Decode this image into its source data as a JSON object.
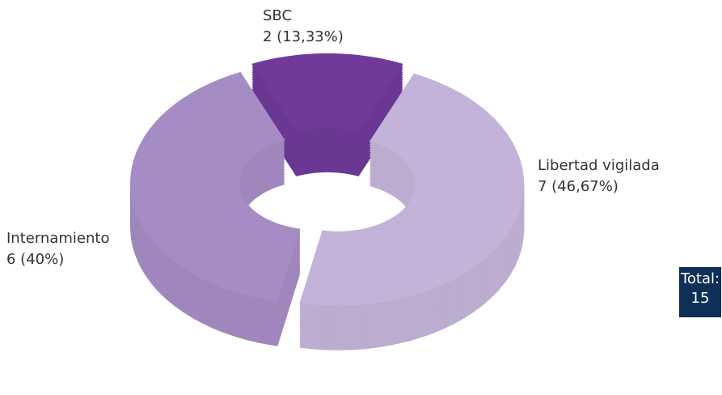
{
  "chart_data": {
    "type": "donut",
    "categories": [
      "SBC",
      "Libertad vigilada",
      "Internamiento"
    ],
    "values": [
      2,
      7,
      6
    ],
    "value_labels": [
      "2 (13,33%)",
      "7 (46,67%)",
      "6 (40%)"
    ],
    "colors": [
      "#6f3a9a",
      "#c3b3d9",
      "#a68cc4"
    ],
    "total_label": "Total:",
    "total": 15
  }
}
